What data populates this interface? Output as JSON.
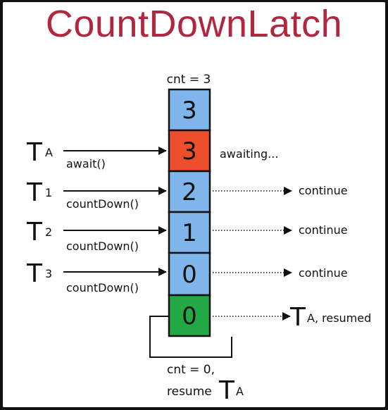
{
  "title": "CountDownLatch",
  "top_counter": "cnt = 3",
  "cells": [
    {
      "value": "3",
      "color": "#7fb5ea"
    },
    {
      "value": "3",
      "color": "#ed4f2d"
    },
    {
      "value": "2",
      "color": "#7fb5ea"
    },
    {
      "value": "1",
      "color": "#7fb5ea"
    },
    {
      "value": "0",
      "color": "#7fb5ea"
    },
    {
      "value": "0",
      "color": "#22a845"
    }
  ],
  "threads": [
    {
      "main": "T",
      "sub": "A",
      "method": "await()"
    },
    {
      "main": "T",
      "sub": "1",
      "method": "countDown()"
    },
    {
      "main": "T",
      "sub": "2",
      "method": "countDown()"
    },
    {
      "main": "T",
      "sub": "3",
      "method": "countDown()"
    }
  ],
  "statuses": {
    "awaiting": "awaiting...",
    "continue_1": "continue",
    "continue_2": "continue",
    "continue_3": "continue",
    "resumed_main": "T",
    "resumed_sub": "A, resumed"
  },
  "bottom": {
    "line1": "cnt = 0,",
    "line2_text": "resume",
    "line2_main": "T",
    "line2_sub": "A"
  }
}
